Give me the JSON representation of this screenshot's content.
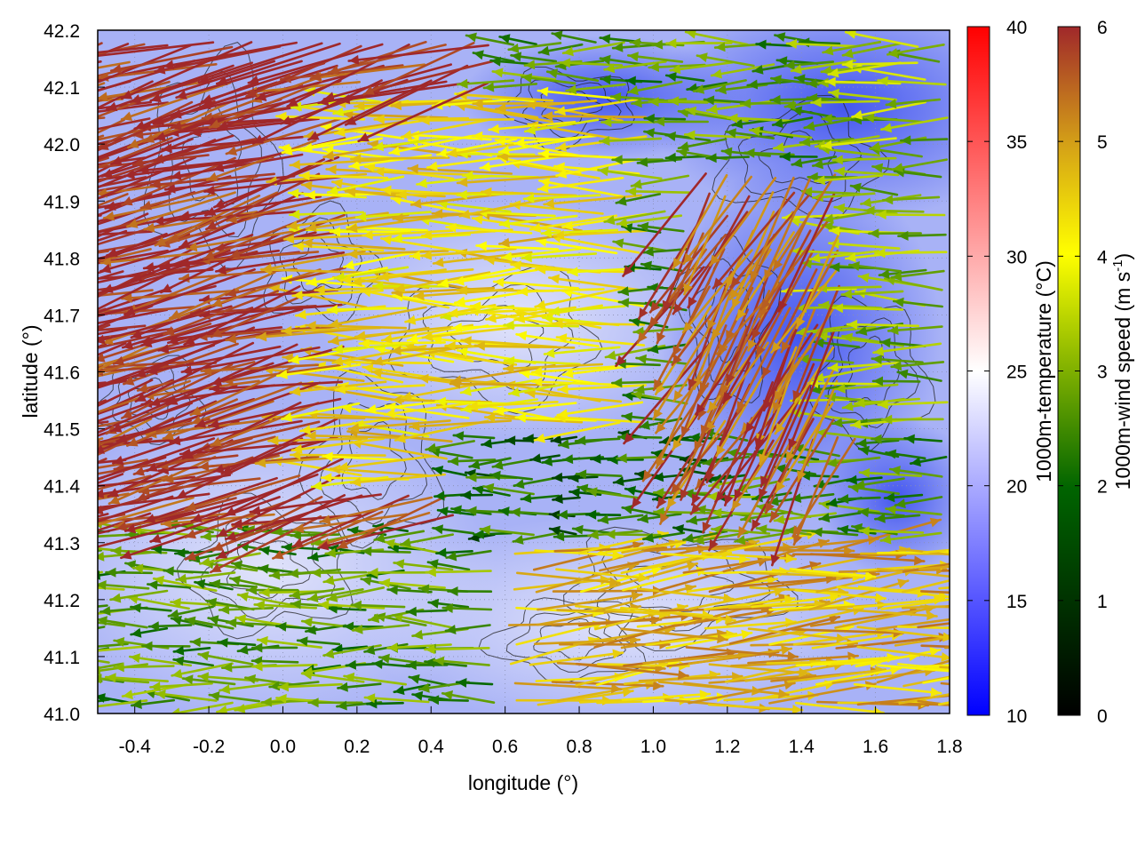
{
  "chart_data": {
    "type": "quiver",
    "xlabel": "longitude (°)",
    "ylabel": "latitude (°)",
    "xlim": [
      -0.5,
      1.8
    ],
    "ylim": [
      41.0,
      42.2
    ],
    "xticks": [
      -0.4,
      -0.2,
      0.0,
      0.2,
      0.4,
      0.6,
      0.8,
      1.0,
      1.2,
      1.4,
      1.6,
      1.8
    ],
    "xtick_labels": [
      "-0.4",
      "-0.2",
      "0.0",
      "0.2",
      "0.4",
      "0.6",
      "0.8",
      "1.0",
      "1.2",
      "1.4",
      "1.6",
      "1.8"
    ],
    "yticks": [
      41.0,
      41.1,
      41.2,
      41.3,
      41.4,
      41.5,
      41.6,
      41.7,
      41.8,
      41.9,
      42.0,
      42.1,
      42.2
    ],
    "ytick_labels": [
      "41.0",
      "41.1",
      "41.2",
      "41.3",
      "41.4",
      "41.5",
      "41.6",
      "41.7",
      "41.8",
      "41.9",
      "42.0",
      "42.1",
      "42.2"
    ],
    "grid": true,
    "background_field": {
      "name": "1000m-temperature",
      "colorbar_label": "1000m-temperature (°C)",
      "range": [
        10,
        40
      ],
      "ticks": [
        10,
        15,
        20,
        25,
        30,
        35,
        40
      ],
      "tick_labels": [
        "10",
        "15",
        "20",
        "25",
        "30",
        "35",
        "40"
      ],
      "colors": [
        "#0000ff",
        "#ffffff",
        "#ff0000"
      ],
      "typical_value_range": [
        15,
        22
      ]
    },
    "vector_field": {
      "name": "1000m-wind speed",
      "colorbar_label_main": "1000m-wind speed (m s",
      "colorbar_label_sup": "-1",
      "colorbar_label_end": ")",
      "range": [
        0,
        6
      ],
      "ticks": [
        0,
        1,
        2,
        3,
        4,
        5,
        6
      ],
      "tick_labels": [
        "0",
        "1",
        "2",
        "3",
        "4",
        "5",
        "6"
      ],
      "colors": [
        "#000000",
        "#006400",
        "#7fb000",
        "#ffff00",
        "#d4a017",
        "#a0282a"
      ],
      "regions": [
        {
          "lon": [
            -0.5,
            0.6
          ],
          "lat": [
            41.35,
            42.2
          ],
          "speed": 6,
          "direction_deg": 195
        },
        {
          "lon": [
            0.2,
            1.0
          ],
          "lat": [
            41.4,
            42.1
          ],
          "speed": 4,
          "direction_deg": 180
        },
        {
          "lon": [
            1.1,
            1.6
          ],
          "lat": [
            41.45,
            41.95
          ],
          "speed": 5.5,
          "direction_deg": 240
        },
        {
          "lon": [
            0.6,
            1.8
          ],
          "lat": [
            41.0,
            41.3
          ],
          "speed": 4.5,
          "direction_deg": 5
        },
        {
          "lon": [
            0.5,
            1.3
          ],
          "lat": [
            41.3,
            41.5
          ],
          "speed": 1.5,
          "direction_deg": 180
        },
        {
          "lon": [
            1.5,
            1.8
          ],
          "lat": [
            41.5,
            42.2
          ],
          "speed": 2.5,
          "direction_deg": 180
        }
      ]
    }
  }
}
